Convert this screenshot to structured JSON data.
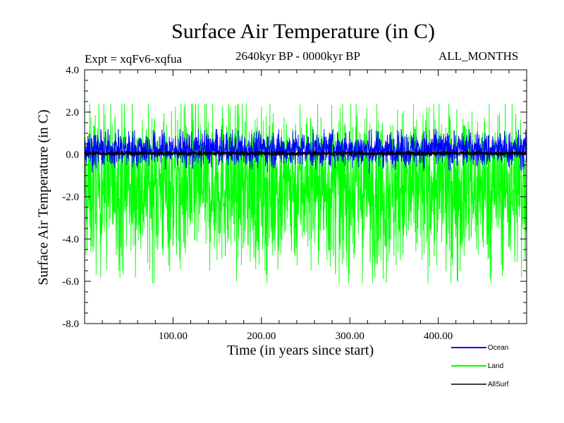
{
  "chart_data": {
    "type": "line",
    "title": "Surface Air Temperature (in C)",
    "subtitle_left": "Expt = xqFv6-xqfua",
    "subtitle_center": "2640kyr BP - 0000kyr BP",
    "subtitle_right": "ALL_MONTHS",
    "xlabel": "Time (in years since start)",
    "ylabel": "Surface Air Temperature (in C)",
    "xlim": [
      0,
      500
    ],
    "ylim": [
      -8.0,
      4.0
    ],
    "xticks": [
      100,
      200,
      300,
      400
    ],
    "xtick_labels": [
      "100.00",
      "200.00",
      "300.00",
      "400.00"
    ],
    "yticks": [
      4.0,
      2.0,
      0.0,
      -2.0,
      -4.0,
      -6.0,
      -8.0
    ],
    "ytick_labels": [
      "4.0",
      "2.0",
      "0.0",
      "-2.0",
      "-4.0",
      "-6.0",
      "-8.0"
    ],
    "legend_position": "bottom-right, outside plot",
    "series": [
      {
        "name": "Land",
        "color": "#00ff00",
        "mean": -1.5,
        "typical_range": [
          -5.0,
          1.9
        ],
        "extremes": [
          -6.1,
          2.4
        ],
        "note": "high-frequency noise, ~2000 samples"
      },
      {
        "name": "Ocean",
        "color": "#0000ff",
        "mean": 0.2,
        "typical_range": [
          -0.5,
          1.0
        ],
        "extremes": [
          -0.9,
          1.2
        ],
        "note": "high-frequency noise, ~2000 samples"
      },
      {
        "name": "AllSurf",
        "color": "#000000",
        "mean": 0.05,
        "typical_range": [
          -0.05,
          0.15
        ],
        "note": "nearly flat line near 0"
      }
    ]
  }
}
